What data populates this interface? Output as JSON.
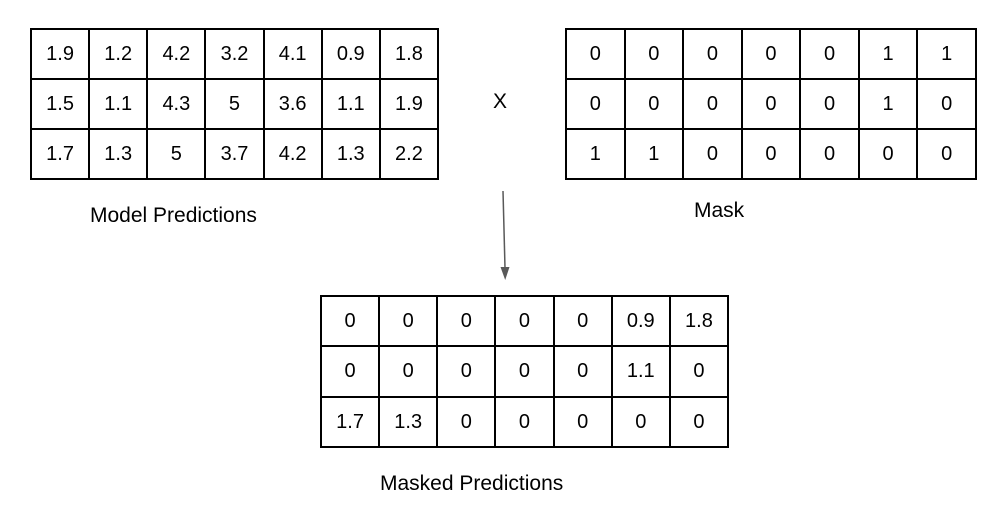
{
  "model_predictions": {
    "label": "Model Predictions",
    "rows": [
      [
        "1.9",
        "1.2",
        "4.2",
        "3.2",
        "4.1",
        "0.9",
        "1.8"
      ],
      [
        "1.5",
        "1.1",
        "4.3",
        "5",
        "3.6",
        "1.1",
        "1.9"
      ],
      [
        "1.7",
        "1.3",
        "5",
        "3.7",
        "4.2",
        "1.3",
        "2.2"
      ]
    ]
  },
  "operator": "X",
  "mask": {
    "label": "Mask",
    "rows": [
      [
        "0",
        "0",
        "0",
        "0",
        "0",
        "1",
        "1"
      ],
      [
        "0",
        "0",
        "0",
        "0",
        "0",
        "1",
        "0"
      ],
      [
        "1",
        "1",
        "0",
        "0",
        "0",
        "0",
        "0"
      ]
    ]
  },
  "masked_predictions": {
    "label": "Masked Predictions",
    "rows": [
      [
        "0",
        "0",
        "0",
        "0",
        "0",
        "0.9",
        "1.8"
      ],
      [
        "0",
        "0",
        "0",
        "0",
        "0",
        "1.1",
        "0"
      ],
      [
        "1.7",
        "1.3",
        "0",
        "0",
        "0",
        "0",
        "0"
      ]
    ]
  },
  "colors": {
    "line": "#000000",
    "arrow": "#595959",
    "background": "#ffffff"
  }
}
